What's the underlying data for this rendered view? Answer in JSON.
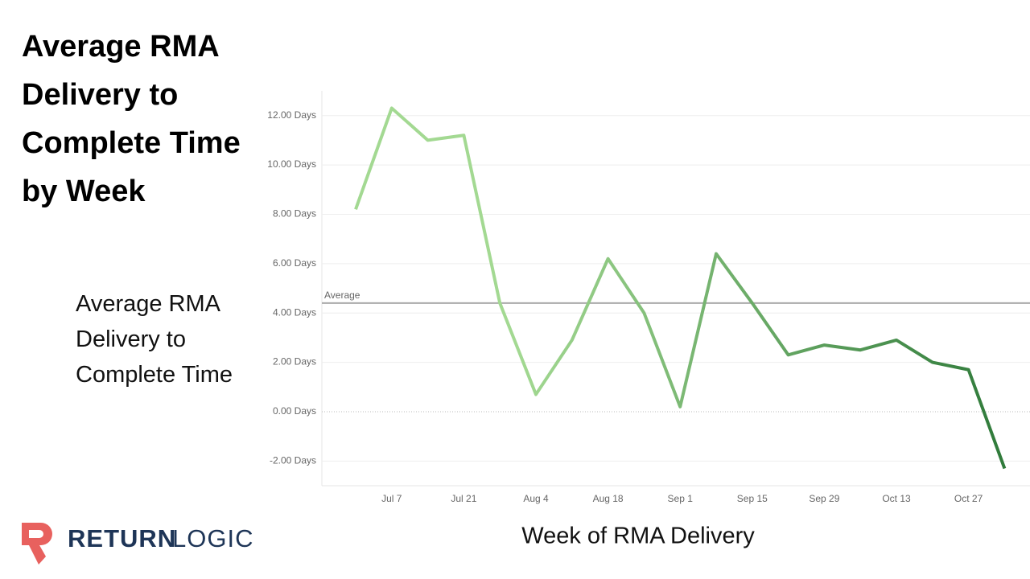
{
  "chart_data": {
    "type": "line",
    "title": "Average RMA Delivery to Complete Time by Week",
    "subtitle": "Average RMA Delivery to Complete Time",
    "x_label": "Week of RMA Delivery",
    "categories": [
      null,
      "Jul 7",
      null,
      "Jul 21",
      null,
      "Aug 4",
      null,
      "Aug 18",
      null,
      "Sep 1",
      null,
      "Sep 15",
      null,
      "Sep 29",
      null,
      "Oct 13",
      null,
      "Oct 27",
      null
    ],
    "values": [
      8.2,
      12.3,
      11.0,
      11.2,
      4.4,
      0.7,
      2.9,
      6.2,
      4.0,
      0.2,
      6.4,
      4.4,
      2.3,
      2.7,
      2.5,
      2.9,
      2.0,
      1.7,
      -2.3
    ],
    "colors": [
      "#a3d992",
      "#2f7a3a"
    ],
    "reference_line": {
      "label": "Average",
      "value": 4.4,
      "color": "#aaaaaa"
    },
    "ylim": [
      -3,
      13
    ],
    "yticks": [
      {
        "value": -2,
        "label": "-2.00 Days"
      },
      {
        "value": 0,
        "label": "0.00 Days"
      },
      {
        "value": 2,
        "label": "2.00 Days"
      },
      {
        "value": 4,
        "label": "4.00 Days"
      },
      {
        "value": 6,
        "label": "6.00 Days"
      },
      {
        "value": 8,
        "label": "8.00 Days"
      },
      {
        "value": 10,
        "label": "10.00 Days"
      },
      {
        "value": 12,
        "label": "12.00 Days"
      }
    ],
    "grid": true
  },
  "logo": {
    "bold": "RETURN",
    "light": "LOGIC"
  }
}
